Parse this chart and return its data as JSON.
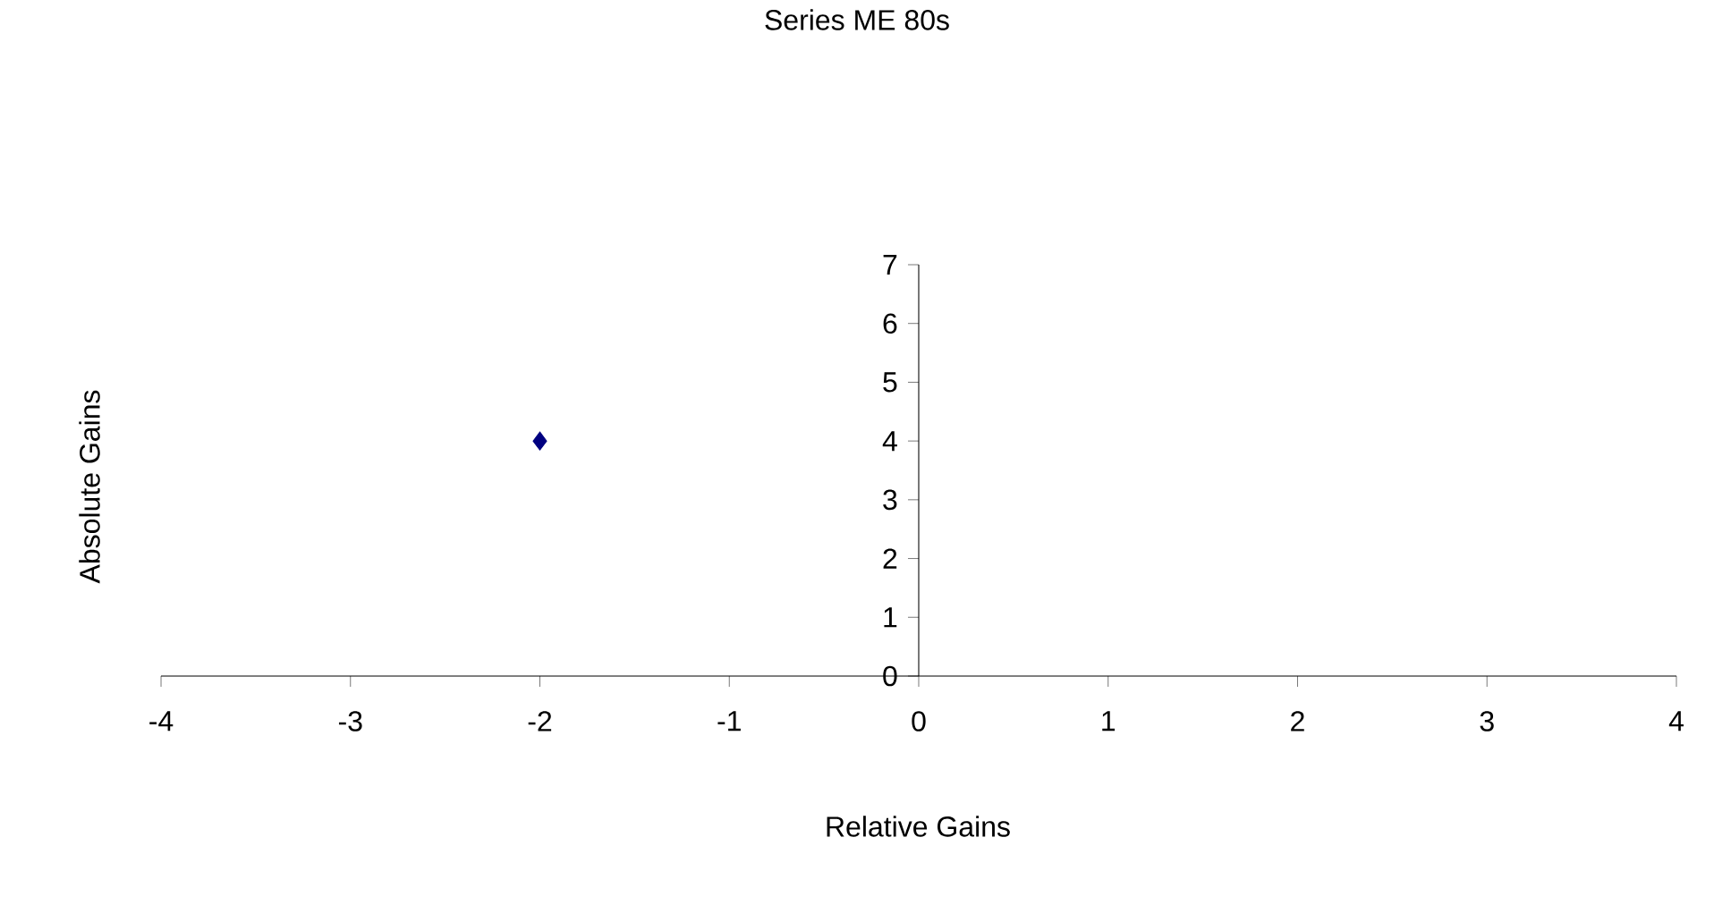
{
  "chart_data": {
    "type": "scatter",
    "title": "Series ME 80s",
    "xlabel": "Relative Gains",
    "ylabel": "Absolute Gains",
    "series": [
      {
        "color": "#000080",
        "x": [
          -2
        ],
        "values": [
          4
        ]
      }
    ],
    "xlim": [
      -4,
      4
    ],
    "ylim": [
      0,
      7
    ],
    "xticks": [
      -4,
      -3,
      -2,
      -1,
      0,
      1,
      2,
      3,
      4
    ],
    "yticks": [
      0,
      1,
      2,
      3,
      4,
      5,
      6,
      7
    ],
    "marker": "diamond"
  }
}
